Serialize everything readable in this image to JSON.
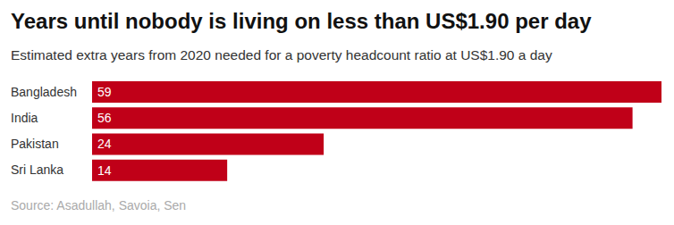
{
  "chart_data": {
    "type": "bar",
    "title": "Years until nobody is living on less than US$1.90 per day",
    "subtitle": "Estimated extra years from 2020 needed for a poverty headcount ratio at US$1.90 a day",
    "source": "Source: Asadullah, Savoia, Sen",
    "categories": [
      "Bangladesh",
      "India",
      "Pakistan",
      "Sri Lanka"
    ],
    "values": [
      59,
      56,
      24,
      14
    ],
    "color": "#c00018",
    "xlim": [
      0,
      59
    ],
    "orientation": "horizontal",
    "data_labels": true,
    "tick_labels": "y",
    "grid": false
  }
}
